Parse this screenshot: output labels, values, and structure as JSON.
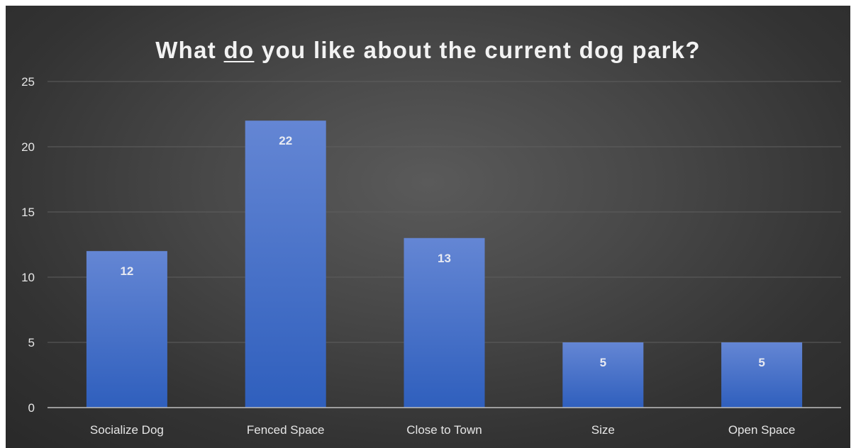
{
  "chart_data": {
    "type": "bar",
    "title": {
      "before": "What ",
      "underlined": "do",
      "after": " you like about the current dog park?"
    },
    "categories": [
      "Socialize Dog",
      "Fenced Space",
      "Close to Town",
      "Size",
      "Open Space"
    ],
    "values": [
      12,
      22,
      13,
      5,
      5
    ],
    "data_labels": [
      "12",
      "22",
      "13",
      "5",
      "5"
    ],
    "ylim": [
      0,
      25
    ],
    "yticks": [
      "0",
      "5",
      "10",
      "15",
      "20",
      "25"
    ],
    "grid": true,
    "legend": "none",
    "colors": {
      "bar_top": "#6486d4",
      "bar_bottom": "#2f5fbd",
      "gridline": "#5e5e5e",
      "axis": "#bfbfbf"
    }
  }
}
